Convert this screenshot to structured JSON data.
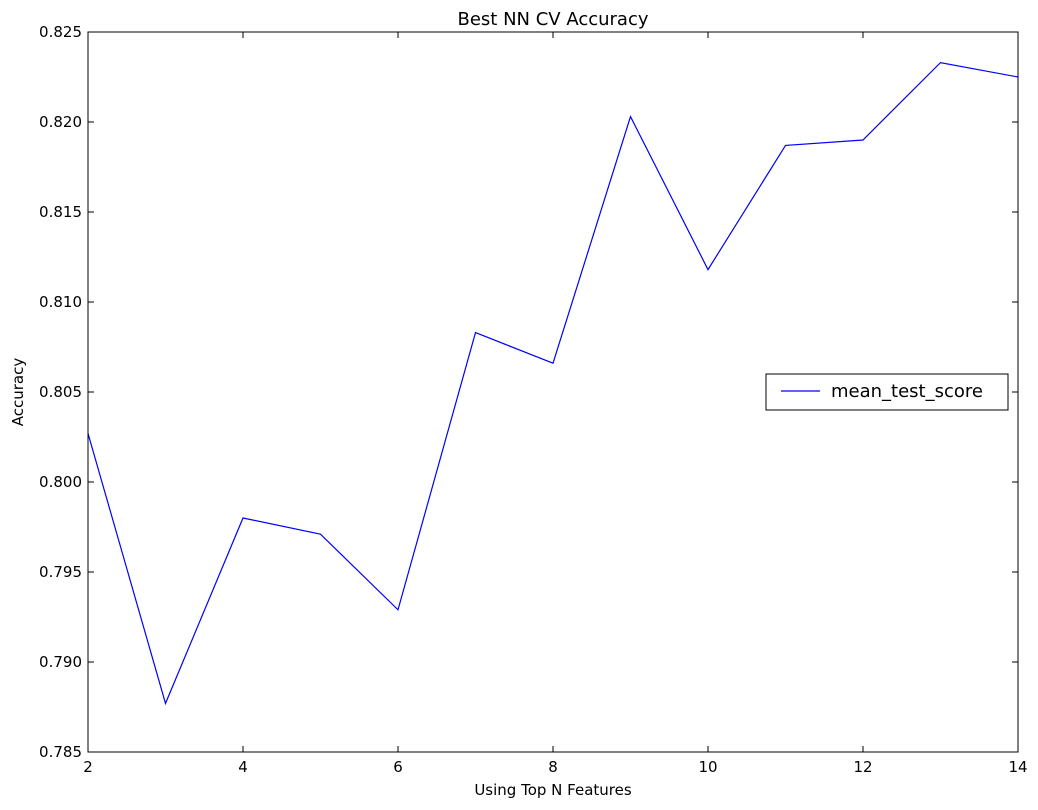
{
  "chart_data": {
    "type": "line",
    "title": "Best NN CV Accuracy",
    "xlabel": "Using Top N Features",
    "ylabel": "Accuracy",
    "xlim": [
      2,
      14
    ],
    "ylim": [
      0.785,
      0.825
    ],
    "xticks": [
      2,
      4,
      6,
      8,
      10,
      12,
      14
    ],
    "xtick_labels": [
      "2",
      "4",
      "6",
      "8",
      "10",
      "12",
      "14"
    ],
    "yticks": [
      0.785,
      0.79,
      0.795,
      0.8,
      0.805,
      0.81,
      0.815,
      0.82,
      0.825
    ],
    "ytick_labels": [
      "0.785",
      "0.790",
      "0.795",
      "0.800",
      "0.805",
      "0.810",
      "0.815",
      "0.820",
      "0.825"
    ],
    "grid": false,
    "legend_position": "center-right",
    "x": [
      2,
      3,
      4,
      5,
      6,
      7,
      8,
      9,
      10,
      11,
      12,
      13,
      14
    ],
    "series": [
      {
        "name": "mean_test_score",
        "color": "#0000ff",
        "values": [
          0.8027,
          0.7877,
          0.798,
          0.7971,
          0.7929,
          0.8083,
          0.8066,
          0.8203,
          0.8118,
          0.8187,
          0.819,
          0.8233,
          0.8225
        ]
      }
    ]
  }
}
